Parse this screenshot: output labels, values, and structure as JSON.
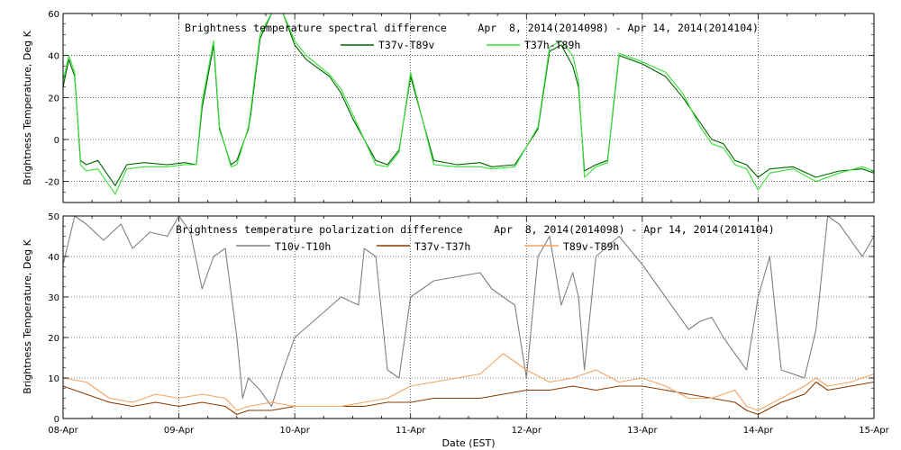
{
  "xlabel": "Date (EST)",
  "x_ticks": [
    "08-Apr",
    "09-Apr",
    "10-Apr",
    "11-Apr",
    "12-Apr",
    "13-Apr",
    "14-Apr",
    "15-Apr"
  ],
  "chart_data": [
    {
      "type": "line",
      "title": "Brightness temperature spectral difference     Apr  8, 2014(2014098) - Apr 14, 2014(2014104)",
      "ylabel": "Brightness Temperature, Deg K",
      "ylim": [
        -30,
        60
      ],
      "yticks": [
        -20,
        0,
        20,
        40,
        60
      ],
      "grid": true,
      "legend": "top-center",
      "x_unit": "days since 08-Apr 00:00",
      "xlim": [
        0,
        7
      ],
      "series": [
        {
          "name": "T37v-T89v",
          "color": "#006400",
          "x": [
            0,
            0.05,
            0.1,
            0.15,
            0.2,
            0.3,
            0.45,
            0.55,
            0.7,
            0.9,
            1.05,
            1.15,
            1.2,
            1.3,
            1.35,
            1.45,
            1.5,
            1.6,
            1.62,
            1.7,
            1.8,
            1.9,
            2.0,
            2.1,
            2.3,
            2.4,
            2.5,
            2.7,
            2.8,
            2.9,
            3.0,
            3.2,
            3.4,
            3.6,
            3.7,
            3.9,
            4.1,
            4.2,
            4.3,
            4.4,
            4.45,
            4.5,
            4.6,
            4.7,
            4.75,
            4.8,
            5.0,
            5.2,
            5.35,
            5.5,
            5.6,
            5.7,
            5.8,
            5.9,
            6.0,
            6.1,
            6.3,
            6.5,
            6.7,
            6.9,
            7.0
          ],
          "y": [
            25,
            38,
            30,
            -10,
            -12,
            -10,
            -22,
            -12,
            -11,
            -12,
            -11,
            -12,
            15,
            45,
            5,
            -12,
            -10,
            5,
            12,
            48,
            60,
            62,
            45,
            38,
            30,
            22,
            10,
            -10,
            -12,
            -5,
            30,
            -10,
            -12,
            -11,
            -13,
            -12,
            5,
            42,
            45,
            35,
            25,
            -15,
            -12,
            -10,
            15,
            40,
            36,
            30,
            20,
            8,
            0,
            -2,
            -10,
            -12,
            -18,
            -14,
            -13,
            -18,
            -15,
            -14,
            -16
          ]
        },
        {
          "name": "T37h-T89h",
          "color": "#33e033",
          "x": [
            0,
            0.05,
            0.1,
            0.15,
            0.2,
            0.3,
            0.45,
            0.55,
            0.7,
            0.9,
            1.05,
            1.15,
            1.2,
            1.3,
            1.35,
            1.45,
            1.5,
            1.6,
            1.62,
            1.7,
            1.8,
            1.9,
            2.0,
            2.1,
            2.3,
            2.4,
            2.5,
            2.7,
            2.8,
            2.9,
            3.0,
            3.2,
            3.4,
            3.6,
            3.7,
            3.9,
            4.1,
            4.2,
            4.3,
            4.4,
            4.45,
            4.5,
            4.6,
            4.7,
            4.75,
            4.8,
            5.0,
            5.2,
            5.35,
            5.5,
            5.6,
            5.7,
            5.8,
            5.9,
            6.0,
            6.1,
            6.3,
            6.5,
            6.7,
            6.9,
            7.0
          ],
          "y": [
            28,
            40,
            32,
            -12,
            -15,
            -14,
            -26,
            -14,
            -13,
            -13,
            -12,
            -12,
            18,
            47,
            6,
            -13,
            -12,
            6,
            14,
            50,
            62,
            65,
            47,
            40,
            31,
            24,
            12,
            -12,
            -13,
            -6,
            32,
            -12,
            -13,
            -13,
            -14,
            -13,
            6,
            44,
            47,
            40,
            28,
            -18,
            -13,
            -11,
            16,
            41,
            37,
            32,
            22,
            6,
            -2,
            -4,
            -12,
            -14,
            -24,
            -16,
            -14,
            -20,
            -16,
            -13,
            -15
          ]
        }
      ]
    },
    {
      "type": "line",
      "title": "Brightness temperature polarization difference     Apr  8, 2014(2014098) - Apr 14, 2014(2014104)",
      "ylabel": "Brightness Temperature, Deg K",
      "ylim": [
        0,
        50
      ],
      "yticks": [
        0,
        10,
        20,
        30,
        40,
        50
      ],
      "grid": true,
      "legend": "top-center",
      "x_unit": "days since 08-Apr 00:00",
      "xlim": [
        0,
        7
      ],
      "series": [
        {
          "name": "T10v-T10h",
          "color": "#808080",
          "x": [
            0,
            0.1,
            0.2,
            0.35,
            0.5,
            0.6,
            0.75,
            0.9,
            1.0,
            1.1,
            1.2,
            1.3,
            1.4,
            1.5,
            1.55,
            1.6,
            1.7,
            1.8,
            1.9,
            2.0,
            2.2,
            2.4,
            2.55,
            2.6,
            2.7,
            2.8,
            2.9,
            3.0,
            3.2,
            3.4,
            3.6,
            3.7,
            3.9,
            4.0,
            4.1,
            4.2,
            4.3,
            4.4,
            4.45,
            4.5,
            4.6,
            4.8,
            5.0,
            5.2,
            5.4,
            5.5,
            5.6,
            5.7,
            5.9,
            6.0,
            6.1,
            6.2,
            6.4,
            6.5,
            6.6,
            6.7,
            6.9,
            7.0
          ],
          "y": [
            38,
            50,
            48,
            44,
            48,
            42,
            46,
            45,
            50,
            46,
            32,
            40,
            42,
            20,
            5,
            10,
            7,
            3,
            12,
            20,
            25,
            30,
            28,
            42,
            40,
            12,
            10,
            30,
            34,
            35,
            36,
            32,
            28,
            10,
            40,
            45,
            28,
            36,
            30,
            12,
            40,
            45,
            38,
            30,
            22,
            24,
            25,
            20,
            12,
            30,
            40,
            12,
            10,
            22,
            50,
            48,
            40,
            45
          ]
        },
        {
          "name": "T37v-T37h",
          "color": "#8b3a00",
          "x": [
            0,
            0.2,
            0.4,
            0.6,
            0.8,
            1.0,
            1.2,
            1.4,
            1.5,
            1.6,
            1.8,
            2.0,
            2.2,
            2.4,
            2.6,
            2.8,
            3.0,
            3.2,
            3.4,
            3.6,
            3.8,
            4.0,
            4.2,
            4.4,
            4.6,
            4.8,
            5.0,
            5.2,
            5.4,
            5.6,
            5.8,
            5.9,
            6.0,
            6.2,
            6.4,
            6.5,
            6.6,
            6.8,
            7.0
          ],
          "y": [
            8,
            6,
            4,
            3,
            4,
            3,
            4,
            3,
            1,
            2,
            2,
            3,
            3,
            3,
            3,
            4,
            4,
            5,
            5,
            5,
            6,
            7,
            7,
            8,
            7,
            8,
            8,
            7,
            6,
            5,
            4,
            2,
            1,
            4,
            6,
            9,
            7,
            8,
            9
          ]
        },
        {
          "name": "T89v-T89h",
          "color": "#f4a460",
          "x": [
            0,
            0.2,
            0.4,
            0.6,
            0.8,
            1.0,
            1.2,
            1.4,
            1.5,
            1.6,
            1.8,
            2.0,
            2.2,
            2.4,
            2.6,
            2.8,
            3.0,
            3.2,
            3.4,
            3.6,
            3.8,
            4.0,
            4.2,
            4.4,
            4.6,
            4.8,
            5.0,
            5.2,
            5.4,
            5.6,
            5.8,
            5.9,
            6.0,
            6.2,
            6.4,
            6.5,
            6.6,
            6.8,
            7.0
          ],
          "y": [
            10,
            9,
            5,
            4,
            6,
            5,
            6,
            5,
            2,
            3,
            4,
            3,
            3,
            3,
            4,
            5,
            8,
            9,
            10,
            11,
            16,
            12,
            9,
            10,
            12,
            9,
            10,
            8,
            5,
            5,
            7,
            3,
            2,
            5,
            8,
            10,
            8,
            9,
            11
          ]
        }
      ]
    }
  ]
}
